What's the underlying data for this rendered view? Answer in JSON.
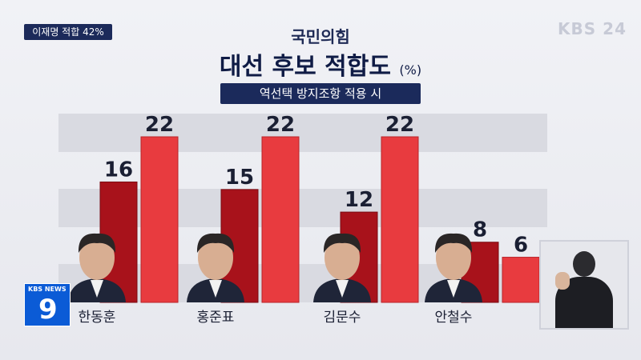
{
  "top_tag": "이재명 적합 42%",
  "channel_logo": "KBS 24",
  "news_badge": {
    "label": "KBS NEWS",
    "number": "9"
  },
  "colors": {
    "bar_dark": "#a8121b",
    "bar_light": "#e83b3f",
    "navy": "#1b2a5b"
  },
  "chart_data": {
    "type": "bar",
    "title": "국민의힘",
    "subtitle": "대선 후보 적합도",
    "unit": "(%)",
    "condition": "역선택 방지조항 적용 시",
    "categories": [
      "한동훈",
      "홍준표",
      "김문수",
      "안철수"
    ],
    "series": [
      {
        "values": [
          16,
          15,
          12,
          8
        ]
      },
      {
        "values": [
          22,
          22,
          22,
          6
        ]
      }
    ],
    "ylim": [
      0,
      22
    ]
  }
}
